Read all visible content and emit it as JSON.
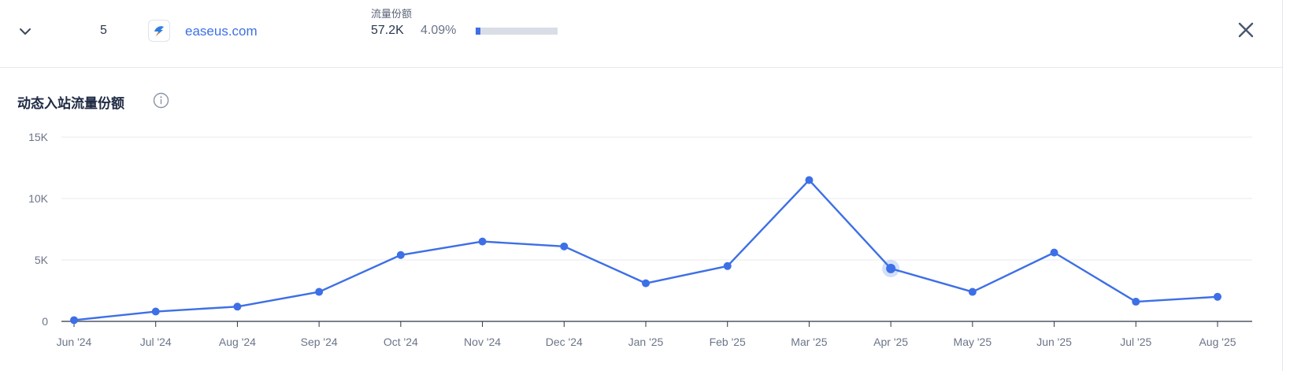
{
  "row": {
    "rank": "5",
    "domain": "easeus.com",
    "share_label": "流量份额",
    "traffic_value": "57.2K",
    "share_percent": "4.09%",
    "share_fraction": 0.0409
  },
  "section": {
    "title": "动态入站流量份额"
  },
  "icons": {
    "expand": "chevron-down-icon",
    "favicon": "easeus-favicon-icon",
    "close": "close-icon",
    "info": "info-icon"
  },
  "colors": {
    "accent": "#3d6fe6",
    "bar_track": "#d9dde6",
    "grid": "#e8eaef"
  },
  "chart_data": {
    "type": "line",
    "title": "",
    "xlabel": "",
    "ylabel": "",
    "ylim": [
      0,
      15000
    ],
    "y_ticks": [
      {
        "value": 0,
        "label": "0"
      },
      {
        "value": 5000,
        "label": "5K"
      },
      {
        "value": 10000,
        "label": "10K"
      },
      {
        "value": 15000,
        "label": "15K"
      }
    ],
    "categories": [
      "Jun '24",
      "Jul '24",
      "Aug '24",
      "Sep '24",
      "Oct '24",
      "Nov '24",
      "Dec '24",
      "Jan '25",
      "Feb '25",
      "Mar '25",
      "Apr '25",
      "May '25",
      "Jun '25",
      "Jul '25",
      "Aug '25"
    ],
    "series": [
      {
        "values": [
          100,
          800,
          1200,
          2400,
          5400,
          6500,
          6100,
          3100,
          4500,
          11500,
          4300,
          2400,
          5600,
          1600,
          2000
        ]
      }
    ],
    "highlighted_index": 10,
    "grid": true
  }
}
